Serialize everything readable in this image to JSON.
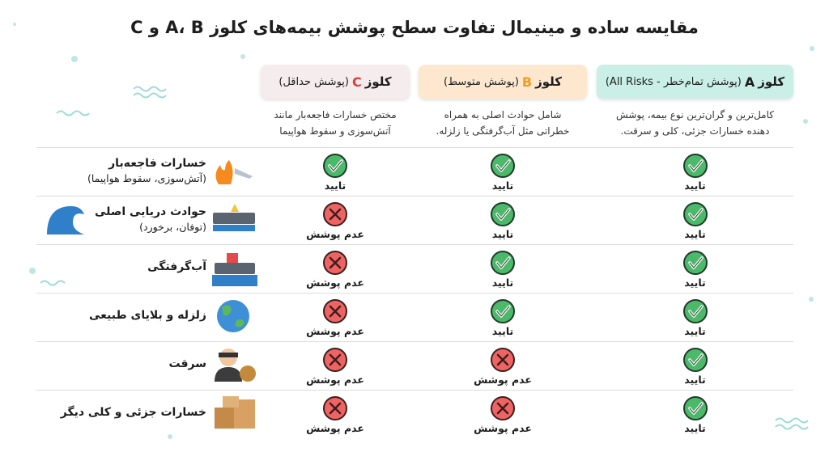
{
  "title": "مقایسه ساده و مینیمال تفاوت سطح پوشش بیمه‌های کلوز A، B و C",
  "columns": [
    {
      "word": "کلوز",
      "letter": "A",
      "note": "(پوشش تمام‌خطر - All Risks)",
      "letter_color": "#1d1d1d",
      "background": "#c9efe7",
      "column_color": "#eaf8f3",
      "description": [
        "کامل‌ترین و گران‌ترین نوع بیمه، پوشش",
        "دهنده خسارات جزئی، کلی و سرقت."
      ]
    },
    {
      "word": "کلوز",
      "letter": "B",
      "note": "(پوشش متوسط)",
      "letter_color": "#f39a1e",
      "background": "#fde8cf",
      "column_color": "#fbfaf2",
      "description": [
        "شامل حوادث اصلی به همراه",
        "خطراتی مثل آب‌گرفتگی یا زلزله."
      ]
    },
    {
      "word": "کلوز",
      "letter": "C",
      "note": "(پوشش حداقل)",
      "letter_color": "#e23b3b",
      "background": "#f5eced",
      "column_color": "#f5f6f7",
      "description": [
        "مختص خسارات فاجعه‌بار مانند",
        "آتش‌سوزی و سقوط هواپیما"
      ]
    }
  ],
  "rows": [
    {
      "label": "خسارات فاجعه‌بار",
      "sublabel": "(آتش‌سوزی، سقوط هواپیما)",
      "cells": [
        {
          "text": "تایید",
          "covered": true
        },
        {
          "text": "تایید",
          "covered": true
        },
        {
          "text": "تایید",
          "covered": true
        }
      ]
    },
    {
      "label": "حوادث دریایی اصلی",
      "sublabel": "(توفان، برخورد)",
      "cells": [
        {
          "text": "تایید",
          "covered": true
        },
        {
          "text": "تایید",
          "covered": true
        },
        {
          "text": "عدم پوشش",
          "covered": false
        }
      ]
    },
    {
      "label": "آب‌گرفتگی",
      "cells": [
        {
          "text": "تایید",
          "covered": true
        },
        {
          "text": "تایید",
          "covered": true
        },
        {
          "text": "عدم پوشش",
          "covered": false
        }
      ]
    },
    {
      "label": "زلزله و بلایای طبیعی",
      "cells": [
        {
          "text": "تایید",
          "covered": true
        },
        {
          "text": "تایید",
          "covered": true
        },
        {
          "text": "عدم پوشش",
          "covered": false
        }
      ]
    },
    {
      "label": "سرقت",
      "cells": [
        {
          "text": "تایید",
          "covered": true
        },
        {
          "text": "عدم پوشش",
          "covered": false
        },
        {
          "text": "عدم پوشش",
          "covered": false
        }
      ]
    },
    {
      "label": "خسارات جزئی و کلی دیگر",
      "cells": [
        {
          "text": "تایید",
          "covered": true
        },
        {
          "text": "عدم پوشش",
          "covered": false
        },
        {
          "text": "عدم پوشش",
          "covered": false
        }
      ]
    }
  ]
}
